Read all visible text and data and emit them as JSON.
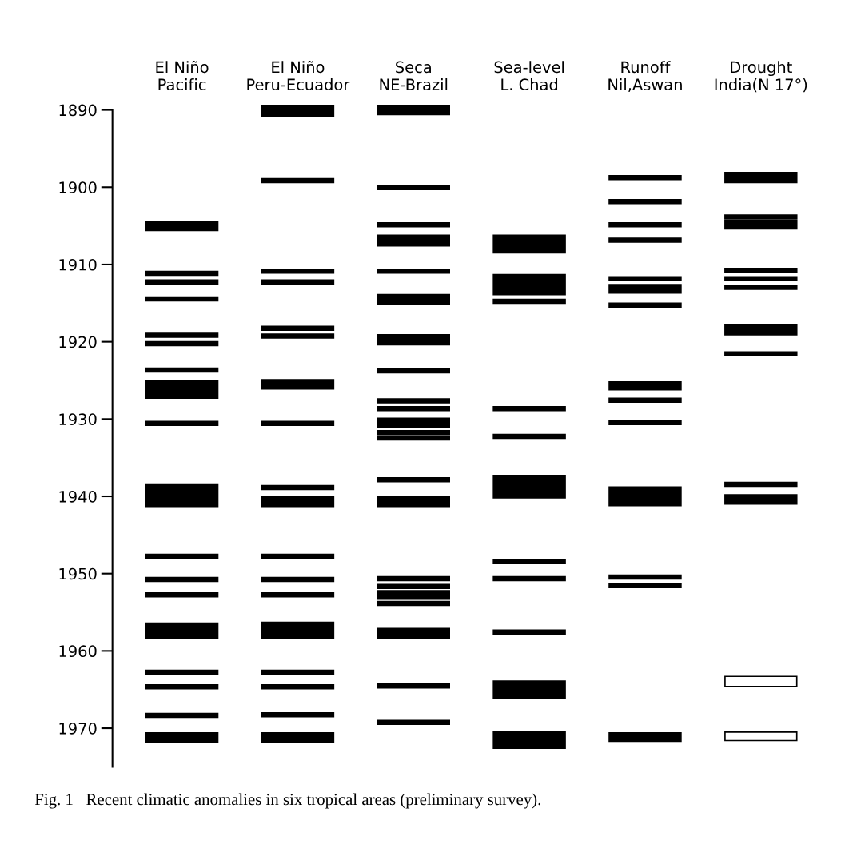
{
  "chart_data": {
    "type": "bar",
    "categories": [
      "El Niño\nPacific",
      "El Niño\nPeru-Ecuador",
      "Seca\nNE-Brazil",
      "Sea-level\nL. Chad",
      "Runoff\nNil,Aswan",
      "Drought\nIndia(N 17°)"
    ],
    "ylim": [
      1975,
      1889
    ],
    "yticks": [
      1890,
      1900,
      1910,
      1920,
      1930,
      1940,
      1950,
      1960,
      1970
    ],
    "grid": false,
    "series": [
      {
        "color": "#000000",
        "base": [
          1904.4,
          1889.4,
          1889.4,
          1906.2,
          1898.5,
          1898.1
        ],
        "values": [
          1.2,
          1.4,
          1.2,
          2.3,
          0.5,
          1.3
        ]
      },
      {
        "color": "#000000",
        "base": [
          1910.9,
          1898.9,
          1899.8,
          1911.3,
          1901.6,
          1903.6
        ],
        "values": [
          0.5,
          0.5,
          0.5,
          2.6,
          0.5,
          0.5
        ]
      },
      {
        "color": "#000000",
        "base": [
          1912.0,
          1910.6,
          1904.6,
          1914.5,
          1904.6,
          1904.3
        ],
        "values": [
          0.5,
          0.5,
          0.5,
          0.5,
          0.5,
          1.1
        ]
      },
      {
        "color": "#000000",
        "base": [
          1914.2,
          1912.0,
          1906.2,
          1928.4,
          1906.6,
          1910.5
        ],
        "values": [
          0.5,
          0.5,
          1.4,
          0.5,
          0.5,
          0.5
        ]
      },
      {
        "color": "#000000",
        "base": [
          1918.9,
          1918.0,
          1910.6,
          1932.0,
          1911.6,
          1911.6
        ],
        "values": [
          0.5,
          0.5,
          0.5,
          0.5,
          0.5,
          0.5
        ]
      },
      {
        "color": "#000000",
        "base": [
          1920.0,
          1919.0,
          1913.9,
          1937.3,
          1912.6,
          1912.7
        ],
        "values": [
          0.5,
          0.5,
          1.3,
          2.9,
          1.1,
          0.5
        ]
      },
      {
        "color": "#000000",
        "base": [
          1923.4,
          1924.9,
          1919.1,
          1948.2,
          1915.0,
          1917.8
        ],
        "values": [
          0.5,
          1.2,
          1.3,
          0.5,
          0.5,
          1.3
        ]
      },
      {
        "color": "#000000",
        "base": [
          1925.1,
          1930.3,
          1923.5,
          1950.4,
          1925.2,
          1921.3
        ],
        "values": [
          2.2,
          0.5,
          0.5,
          0.5,
          1.0,
          0.5
        ]
      },
      {
        "color": "#000000",
        "base": [
          1930.3,
          1938.6,
          1927.4,
          1957.3,
          1927.3,
          1938.2
        ],
        "values": [
          0.5,
          0.5,
          0.5,
          0.5,
          0.5,
          0.5
        ]
      },
      {
        "color": "#000000",
        "base": [
          1938.4,
          1940.0,
          1928.4,
          1963.9,
          1930.2,
          1939.8
        ],
        "values": [
          2.9,
          1.3,
          0.5,
          2.2,
          0.5,
          1.2
        ]
      },
      {
        "colors": [
          "#000000",
          "#000000",
          "#000000",
          "#000000",
          "#000000",
          "#ffffff"
        ],
        "base": [
          1947.5,
          1947.5,
          1929.9,
          1970.5,
          1938.8,
          1963.3
        ],
        "values": [
          0.5,
          0.5,
          1.2,
          2.1,
          2.4,
          1.3
        ]
      },
      {
        "colors": [
          "#000000",
          "#000000",
          "#000000",
          "#000000",
          "#000000",
          "#ffffff"
        ],
        "base": [
          1950.5,
          1950.5,
          1931.5,
          null,
          1950.2,
          1970.5
        ],
        "values": [
          0.5,
          0.5,
          0.5,
          null,
          0.5,
          1.1
        ]
      },
      {
        "color": "#000000",
        "base": [
          1952.5,
          1952.5,
          1932.2,
          null,
          1951.3,
          null
        ],
        "values": [
          0.5,
          0.5,
          0.5,
          null,
          0.5,
          null
        ]
      },
      {
        "color": "#000000",
        "base": [
          1956.4,
          1956.3,
          1937.6,
          null,
          1970.6,
          null
        ],
        "values": [
          2.0,
          2.1,
          0.5,
          null,
          1.1,
          null
        ]
      },
      {
        "color": "#000000",
        "base": [
          1962.5,
          1962.5,
          1940.0,
          null,
          null,
          null
        ],
        "values": [
          0.5,
          0.5,
          1.3,
          null,
          null,
          null
        ]
      },
      {
        "color": "#000000",
        "base": [
          1964.4,
          1964.4,
          1950.4,
          null,
          null,
          null
        ],
        "values": [
          0.5,
          0.5,
          0.5,
          null,
          null,
          null
        ]
      },
      {
        "color": "#000000",
        "base": [
          1968.1,
          1968.0,
          1951.4,
          null,
          null,
          null
        ],
        "values": [
          0.5,
          0.5,
          0.5,
          null,
          null,
          null
        ]
      },
      {
        "color": "#000000",
        "base": [
          1970.6,
          1970.6,
          1952.2,
          null,
          null,
          null
        ],
        "values": [
          1.2,
          1.2,
          1.1,
          null,
          null,
          null
        ]
      },
      {
        "color": "#000000",
        "base": [
          null,
          null,
          1953.6,
          null,
          null,
          null
        ],
        "values": [
          null,
          null,
          0.5,
          null,
          null,
          null
        ]
      },
      {
        "color": "#000000",
        "base": [
          null,
          null,
          1957.1,
          null,
          null,
          null
        ],
        "values": [
          null,
          null,
          1.3,
          null,
          null,
          null
        ]
      },
      {
        "color": "#000000",
        "base": [
          null,
          null,
          1964.3,
          null,
          null,
          null
        ],
        "values": [
          null,
          null,
          0.5,
          null,
          null,
          null
        ]
      },
      {
        "color": "#000000",
        "base": [
          null,
          null,
          1969.0,
          null,
          null,
          null
        ],
        "values": [
          null,
          null,
          0.5,
          null,
          null,
          null
        ]
      }
    ],
    "annotations": [
      "Fig. 1   Recent climatic anomalies in six tropical areas (preliminary survey)."
    ]
  }
}
